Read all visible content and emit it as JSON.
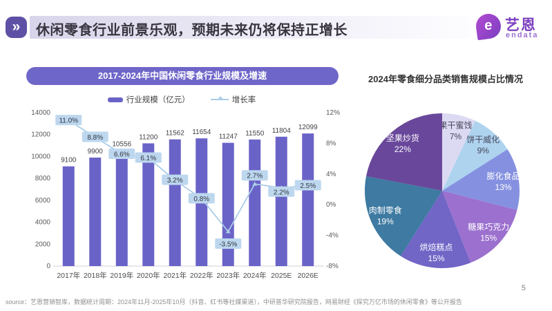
{
  "header": {
    "chevron_glyph": "»",
    "title": "休闲零食行业前景乐观，预期未来仍将保持正增长",
    "logo": {
      "icon_letter": "e",
      "name_cn": "艺恩",
      "name_en": "endata"
    }
  },
  "left_panel": {
    "title": "2017-2024年中国休闲零食行业规模及增速",
    "legend": [
      {
        "label": "行业规模（亿元）",
        "swatch": "bar",
        "color": "#6A63C7"
      },
      {
        "label": "增长率",
        "swatch": "line",
        "color": "#A9CCE9"
      }
    ]
  },
  "right_panel": {
    "title": "2024年零食细分品类销售规模占比情况"
  },
  "footer": {
    "source": "source：艺恩营销智库，数据统计周期：2024年11月-2025年10月（抖音、红书等社媒渠道），中研普华研究院报告，网易财经《探究万亿市场的休闲零食》等公开报告",
    "page_number": "5"
  },
  "colors": {
    "accent_purple": "#6F66C9",
    "bar": "#6A63C7",
    "line": "#A9CCE9",
    "growth_label_bg": "#BDD7EE",
    "badge": "#5E51A5",
    "logo_purple": "#7B3FBF"
  },
  "chart_data": [
    {
      "type": "combo",
      "title": "2017-2024年中国休闲零食行业规模及增速",
      "categories": [
        "2017年",
        "2018年",
        "2019年",
        "2020年",
        "2021年",
        "2022年",
        "2023年",
        "2024年",
        "2025E",
        "2026E"
      ],
      "series": [
        {
          "name": "行业规模（亿元）",
          "type": "bar",
          "color": "#6A63C7",
          "values": [
            9100,
            9900,
            10556,
            11200,
            11562,
            11654,
            11247,
            11550,
            11804,
            12099
          ]
        },
        {
          "name": "增长率",
          "type": "line",
          "color": "#A9CCE9",
          "label_bg": "#BDD7EE",
          "values_pct": [
            11.0,
            8.8,
            6.6,
            6.1,
            3.2,
            0.8,
            -3.5,
            2.7,
            2.2,
            2.5
          ],
          "labels": [
            "11.0%",
            "8.8%",
            "6.6%",
            "6.1%",
            "3.2%",
            "0.8%",
            "-3.5%",
            "2.7%",
            "2.2%",
            "2.5%"
          ]
        }
      ],
      "left_axis": {
        "min": 0,
        "max": 14000,
        "step": 2000
      },
      "right_axis": {
        "min": -8,
        "max": 12,
        "step": 4,
        "suffix": "%"
      },
      "legend_position": "top",
      "grid": false,
      "label_dy": [
        0,
        0,
        0,
        0,
        0,
        0,
        18,
        -12,
        6,
        0
      ]
    },
    {
      "type": "pie",
      "title": "2024年零食细分品类销售规模占比情况",
      "start_angle_deg": 0,
      "direction": "clockwise",
      "slices": [
        {
          "label": "果干蜜饯",
          "value": 7,
          "color": "#DCDAF3",
          "text": "#46465A"
        },
        {
          "label": "饼干威化",
          "value": 9,
          "color": "#AED3EF",
          "text": "#46465A"
        },
        {
          "label": "膨化食品",
          "value": 13,
          "color": "#8591E0",
          "text": "#FFFFFF"
        },
        {
          "label": "糖果巧克力",
          "value": 15,
          "color": "#9B70CE",
          "text": "#FFFFFF"
        },
        {
          "label": "烘焙糕点",
          "value": 15,
          "color": "#7165C6",
          "text": "#FFFFFF"
        },
        {
          "label": "肉制零食",
          "value": 19,
          "color": "#3E7AA1",
          "text": "#FFFFFF"
        },
        {
          "label": "坚果炒货",
          "value": 22,
          "color": "#69489B",
          "text": "#FFFFFF"
        }
      ]
    }
  ]
}
